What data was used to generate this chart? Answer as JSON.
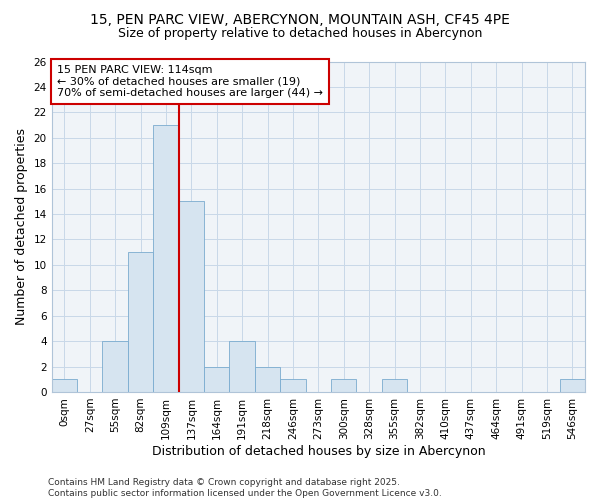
{
  "title_line1": "15, PEN PARC VIEW, ABERCYNON, MOUNTAIN ASH, CF45 4PE",
  "title_line2": "Size of property relative to detached houses in Abercynon",
  "xlabel": "Distribution of detached houses by size in Abercynon",
  "ylabel": "Number of detached properties",
  "bin_labels": [
    "0sqm",
    "27sqm",
    "55sqm",
    "82sqm",
    "109sqm",
    "137sqm",
    "164sqm",
    "191sqm",
    "218sqm",
    "246sqm",
    "273sqm",
    "300sqm",
    "328sqm",
    "355sqm",
    "382sqm",
    "410sqm",
    "437sqm",
    "464sqm",
    "491sqm",
    "519sqm",
    "546sqm"
  ],
  "bar_values": [
    1,
    0,
    4,
    11,
    21,
    15,
    2,
    4,
    2,
    1,
    0,
    1,
    0,
    1,
    0,
    0,
    0,
    0,
    0,
    0,
    1
  ],
  "bar_color": "#d6e4f0",
  "bar_edge_color": "#7aabcf",
  "grid_color": "#c8d8e8",
  "background_color": "#ffffff",
  "plot_bg_color": "#f0f4f8",
  "vline_x": 4.5,
  "vline_color": "#cc0000",
  "annotation_text": "15 PEN PARC VIEW: 114sqm\n← 30% of detached houses are smaller (19)\n70% of semi-detached houses are larger (44) →",
  "annotation_box_color": "white",
  "annotation_box_edge": "#cc0000",
  "ylim": [
    0,
    26
  ],
  "yticks": [
    0,
    2,
    4,
    6,
    8,
    10,
    12,
    14,
    16,
    18,
    20,
    22,
    24,
    26
  ],
  "footnote": "Contains HM Land Registry data © Crown copyright and database right 2025.\nContains public sector information licensed under the Open Government Licence v3.0.",
  "title_fontsize": 10,
  "subtitle_fontsize": 9,
  "axis_label_fontsize": 9,
  "tick_fontsize": 7.5,
  "annotation_fontsize": 8,
  "footnote_fontsize": 6.5
}
